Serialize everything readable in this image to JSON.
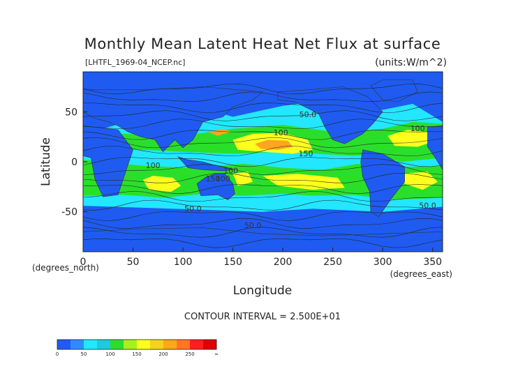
{
  "chart_data": {
    "type": "heatmap",
    "title": "Monthly Mean Latent Heat Net Flux at surface",
    "file_label": "[LHTFL_1969-04_NCEP.nc]",
    "units_label": "(units:W/m^2)",
    "xlabel": "Longitude",
    "ylabel": "Latitude",
    "x_unit_label": "(degrees_east)",
    "y_unit_label": "(degrees_north)",
    "xlim": [
      0,
      360
    ],
    "ylim": [
      -90,
      90
    ],
    "x_ticks": [
      0,
      50,
      100,
      150,
      200,
      250,
      300,
      350
    ],
    "y_ticks": [
      -50,
      0,
      50
    ],
    "contour_interval_text": "CONTOUR INTERVAL = 2.500E+01",
    "contour_labels": [
      {
        "text": "50.0",
        "lon": 225,
        "lat": 46
      },
      {
        "text": "100",
        "lon": 198,
        "lat": 28
      },
      {
        "text": "150",
        "lon": 223,
        "lat": 7
      },
      {
        "text": "100",
        "lon": 335,
        "lat": 32
      },
      {
        "text": "100",
        "lon": 70,
        "lat": -5
      },
      {
        "text": "100",
        "lon": 148,
        "lat": -10
      },
      {
        "text": "100",
        "lon": 140,
        "lat": -18
      },
      {
        "text": "150",
        "lon": 130,
        "lat": -18
      },
      {
        "text": "50.0",
        "lon": 110,
        "lat": -48
      },
      {
        "text": "50.0",
        "lon": 345,
        "lat": -45
      },
      {
        "text": "50.0",
        "lon": 170,
        "lat": -65
      }
    ],
    "colorbar": {
      "ticks": [
        "0",
        "50",
        "100",
        "150",
        "200",
        "250",
        "∞"
      ],
      "colors": [
        "#1f5bf0",
        "#2e8cff",
        "#22e7ff",
        "#22c8e0",
        "#2adf2a",
        "#a6f01e",
        "#ffff1e",
        "#f5d21e",
        "#ffa51e",
        "#ff781e",
        "#ff1e1e",
        "#e00000"
      ]
    }
  }
}
